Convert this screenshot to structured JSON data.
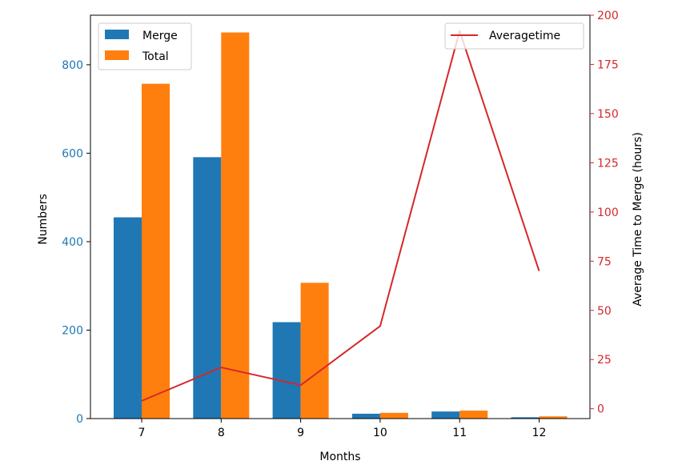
{
  "chart_data": {
    "type": "bar",
    "xlabel": "Months",
    "ylabel_left": "Numbers",
    "ylabel_right": "Average Time to Merge (hours)",
    "categories": [
      "7",
      "8",
      "9",
      "10",
      "11",
      "12"
    ],
    "series": [
      {
        "name": "Merge",
        "axis": "left",
        "kind": "bar",
        "values": [
          455,
          591,
          218,
          11,
          16,
          3
        ],
        "color": "#1f77b4"
      },
      {
        "name": "Total",
        "axis": "left",
        "kind": "bar",
        "values": [
          757,
          873,
          307,
          13,
          18,
          5
        ],
        "color": "#ff7f0e"
      },
      {
        "name": "Averagetime",
        "axis": "right",
        "kind": "line",
        "values": [
          4,
          21,
          12,
          42,
          192,
          70
        ],
        "color": "#d62728"
      }
    ],
    "ylim_left": [
      0,
      912
    ],
    "ylim_right": [
      -5,
      200
    ],
    "yticks_left": [
      0,
      200,
      400,
      600,
      800
    ],
    "yticks_right": [
      0,
      25,
      50,
      75,
      100,
      125,
      150,
      175,
      200
    ],
    "left_tick_color": "#1f77b4",
    "right_tick_color": "#d62728",
    "legend_left_position": "upper-left",
    "legend_right_position": "upper-right",
    "grid": false
  }
}
